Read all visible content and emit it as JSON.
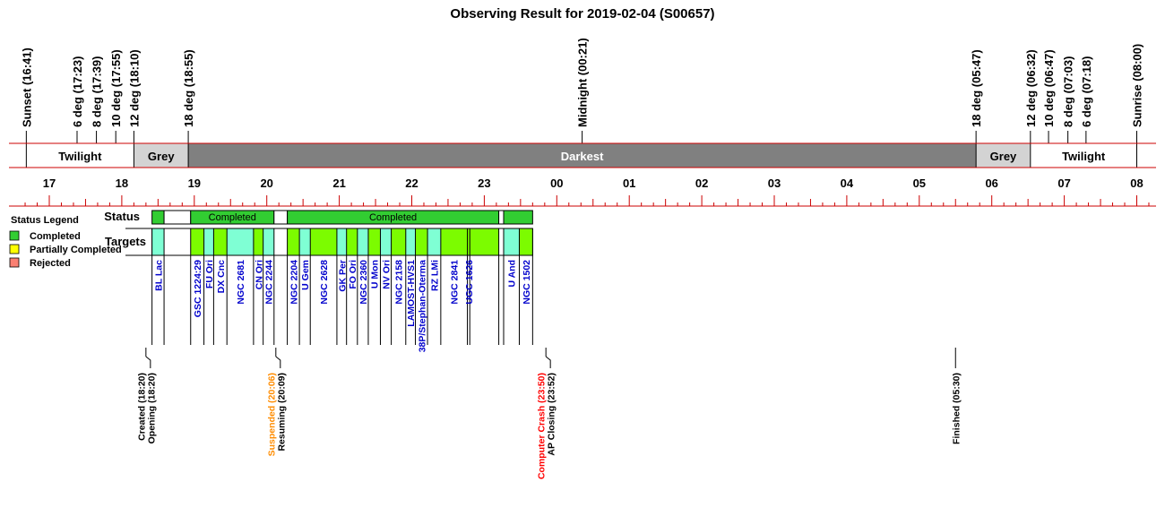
{
  "chart_data": {
    "type": "timeline",
    "title": "Observing Result for 2019-02-04 (S00657)",
    "time_axis": {
      "start_hour": 16.6,
      "end_hour": 32.2,
      "tick_labels": [
        "17",
        "18",
        "19",
        "20",
        "21",
        "22",
        "23",
        "00",
        "01",
        "02",
        "03",
        "04",
        "05",
        "06",
        "07",
        "08"
      ],
      "tick_hours": [
        17,
        18,
        19,
        20,
        21,
        22,
        23,
        24,
        25,
        26,
        27,
        28,
        29,
        30,
        31,
        32
      ]
    },
    "sky_events": [
      {
        "label": "Sunset (16:41)",
        "hour": 16.683
      },
      {
        "label": "6 deg (17:23)",
        "hour": 17.383
      },
      {
        "label": "8 deg (17:39)",
        "hour": 17.65
      },
      {
        "label": "10 deg (17:55)",
        "hour": 17.917
      },
      {
        "label": "12 deg (18:10)",
        "hour": 18.167
      },
      {
        "label": "18 deg (18:55)",
        "hour": 18.917
      },
      {
        "label": "Midnight (00:21)",
        "hour": 24.35
      },
      {
        "label": "18 deg (05:47)",
        "hour": 29.783
      },
      {
        "label": "12 deg (06:32)",
        "hour": 30.533
      },
      {
        "label": "10 deg (06:47)",
        "hour": 30.783
      },
      {
        "label": "8 deg (07:03)",
        "hour": 31.05
      },
      {
        "label": "6 deg (07:18)",
        "hour": 31.3
      },
      {
        "label": "Sunrise (08:00)",
        "hour": 32.0
      }
    ],
    "sky_bands": [
      {
        "label": "Twilight",
        "start": 16.683,
        "end": 18.167,
        "color": "#ffffff",
        "text_color": "#000000"
      },
      {
        "label": "Grey",
        "start": 18.167,
        "end": 18.917,
        "color": "#d3d3d3",
        "text_color": "#000000"
      },
      {
        "label": "Darkest",
        "start": 18.917,
        "end": 29.783,
        "color": "#808080",
        "text_color": "#ffffff"
      },
      {
        "label": "Grey",
        "start": 29.783,
        "end": 30.533,
        "color": "#d3d3d3",
        "text_color": "#000000"
      },
      {
        "label": "Twilight",
        "start": 30.533,
        "end": 32.0,
        "color": "#ffffff",
        "text_color": "#000000"
      }
    ],
    "status_row_label": "Status",
    "targets_row_label": "Targets",
    "status_segments": [
      {
        "label": "",
        "start": 18.417,
        "end": 18.583,
        "status": "completed"
      },
      {
        "label": "",
        "start": 18.583,
        "end": 18.95,
        "status": "none"
      },
      {
        "label": "Completed",
        "start": 18.95,
        "end": 20.1,
        "status": "completed"
      },
      {
        "label": "",
        "start": 20.1,
        "end": 20.283,
        "status": "none"
      },
      {
        "label": "Completed",
        "start": 20.283,
        "end": 23.2,
        "status": "completed"
      },
      {
        "label": "",
        "start": 23.2,
        "end": 23.267,
        "status": "none"
      },
      {
        "label": "",
        "start": 23.267,
        "end": 23.667,
        "status": "completed"
      }
    ],
    "targets": [
      {
        "name": "BL Lac",
        "start": 18.417,
        "end": 18.583,
        "color": "#7fffd4"
      },
      {
        "name": "GSC 1224:29",
        "start": 18.95,
        "end": 19.133,
        "color": "#7cfc00"
      },
      {
        "name": "FU Ori",
        "start": 19.133,
        "end": 19.267,
        "color": "#7fffd4"
      },
      {
        "name": "DX Cnc",
        "start": 19.267,
        "end": 19.45,
        "color": "#7cfc00"
      },
      {
        "name": "NGC 2681",
        "start": 19.45,
        "end": 19.817,
        "color": "#7fffd4"
      },
      {
        "name": "CN Ori",
        "start": 19.817,
        "end": 19.95,
        "color": "#7cfc00"
      },
      {
        "name": "NGC 2244",
        "start": 19.95,
        "end": 20.1,
        "color": "#7fffd4"
      },
      {
        "name": "NGC 2204",
        "start": 20.283,
        "end": 20.45,
        "color": "#7cfc00"
      },
      {
        "name": "U Gem",
        "start": 20.45,
        "end": 20.6,
        "color": "#7fffd4"
      },
      {
        "name": "NGC 2628",
        "start": 20.6,
        "end": 20.967,
        "color": "#7cfc00"
      },
      {
        "name": "GK Per",
        "start": 20.967,
        "end": 21.1,
        "color": "#7fffd4"
      },
      {
        "name": "FO Ori",
        "start": 21.1,
        "end": 21.25,
        "color": "#7cfc00"
      },
      {
        "name": "NGC 2360",
        "start": 21.25,
        "end": 21.4,
        "color": "#7fffd4"
      },
      {
        "name": "U Mon",
        "start": 21.4,
        "end": 21.567,
        "color": "#7cfc00"
      },
      {
        "name": "NV Ori",
        "start": 21.567,
        "end": 21.717,
        "color": "#7fffd4"
      },
      {
        "name": "NGC 2158",
        "start": 21.717,
        "end": 21.917,
        "color": "#7cfc00"
      },
      {
        "name": "LAMOST-HVS1",
        "start": 21.917,
        "end": 22.05,
        "color": "#7fffd4"
      },
      {
        "name": "38P/Stephan-Oterma",
        "start": 22.05,
        "end": 22.217,
        "color": "#7cfc00"
      },
      {
        "name": "RZ LMi",
        "start": 22.217,
        "end": 22.4,
        "color": "#7fffd4"
      },
      {
        "name": "NGC 2841",
        "start": 22.4,
        "end": 22.767,
        "color": "#7cfc00"
      },
      {
        "name": "UGC 1626",
        "start": 22.767,
        "end": 22.8,
        "color": "#7cfc00"
      },
      {
        "name": "",
        "start": 22.8,
        "end": 23.2,
        "color": "#7cfc00"
      },
      {
        "name": "U And",
        "start": 23.267,
        "end": 23.483,
        "color": "#7fffd4"
      },
      {
        "name": "NGC 1502",
        "start": 23.483,
        "end": 23.667,
        "color": "#7cfc00"
      }
    ],
    "events": [
      {
        "lines": [
          {
            "text": "Created (18:20)",
            "color": "#000000"
          },
          {
            "text": "Opening (18:20)",
            "color": "#000000"
          }
        ],
        "hour": 18.333,
        "marker": "break"
      },
      {
        "lines": [
          {
            "text": "Suspended (20:06)",
            "color": "#ff8c00"
          },
          {
            "text": "Resuming (20:09)",
            "color": "#000000"
          }
        ],
        "hour": 20.125,
        "marker": "break"
      },
      {
        "lines": [
          {
            "text": "Computer Crash (23:50)",
            "color": "#ff0000"
          },
          {
            "text": "AP Closing (23:52)",
            "color": "#000000"
          }
        ],
        "hour": 23.85,
        "marker": "break"
      },
      {
        "lines": [
          {
            "text": "Finished (05:30)",
            "color": "#000000"
          }
        ],
        "hour": 29.5,
        "marker": "line"
      }
    ],
    "legend": {
      "title": "Status Legend",
      "placement": "left",
      "items": [
        {
          "label": "Completed",
          "color": "#32cd32"
        },
        {
          "label": "Partially Completed",
          "color": "#ffff00"
        },
        {
          "label": "Rejected",
          "color": "#fa8072"
        }
      ]
    },
    "colors": {
      "completed": "#32cd32",
      "axis_red": "#cc0000",
      "target_text": "#0000cc"
    }
  }
}
